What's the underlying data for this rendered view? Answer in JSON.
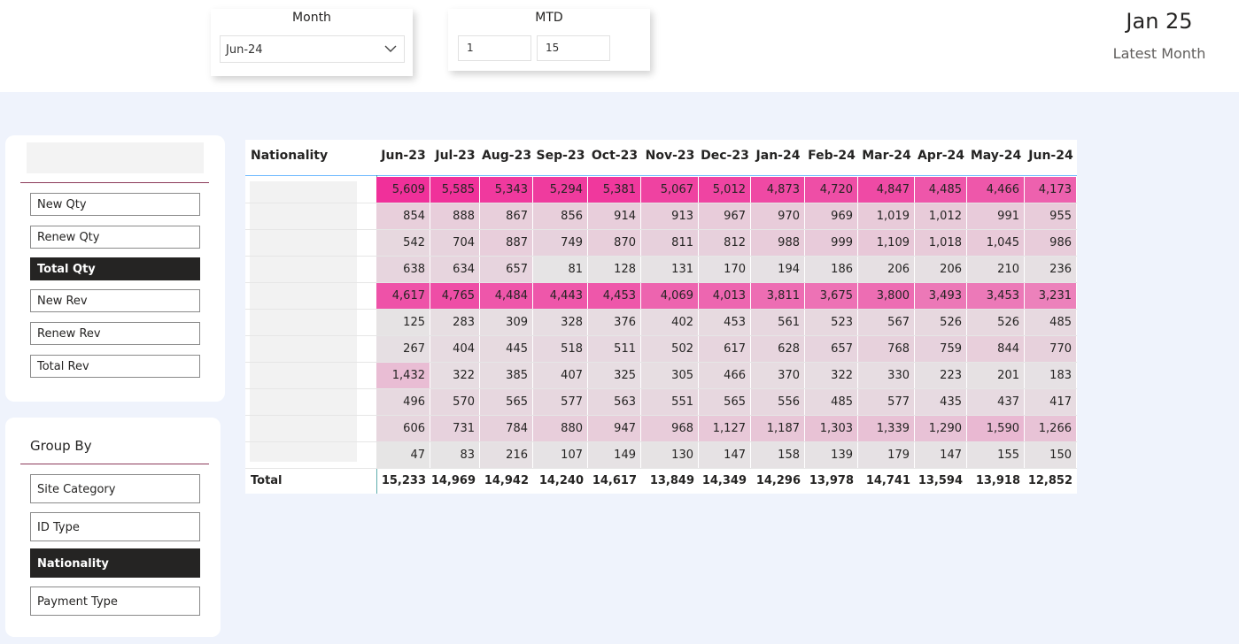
{
  "month_slicer": {
    "title": "Month",
    "selected": "Jun-24"
  },
  "mtd_slicer": {
    "title": "MTD",
    "from": "1",
    "to": "15"
  },
  "latest_month": {
    "value": "Jan 25",
    "label": "Latest Month"
  },
  "measure_buttons": [
    {
      "label": "New Qty",
      "active": false
    },
    {
      "label": "Renew Qty",
      "active": false
    },
    {
      "label": "Total Qty",
      "active": true
    },
    {
      "label": "New Rev",
      "active": false
    },
    {
      "label": "Renew Rev",
      "active": false
    },
    {
      "label": "Total Rev",
      "active": false
    }
  ],
  "group_by": {
    "title": "Group By",
    "buttons": [
      {
        "label": "Site Category",
        "active": false
      },
      {
        "label": "ID Type",
        "active": false
      },
      {
        "label": "Nationality",
        "active": true
      },
      {
        "label": "Payment Type",
        "active": false
      }
    ]
  },
  "matrix": {
    "row_header": "Nationality",
    "columns": [
      "Jun-23",
      "Jul-23",
      "Aug-23",
      "Sep-23",
      "Oct-23",
      "Nov-23",
      "Dec-23",
      "Jan-24",
      "Feb-24",
      "Mar-24",
      "Apr-24",
      "May-24",
      "Jun-24"
    ],
    "rows": [
      [
        "5,609",
        "5,585",
        "5,343",
        "5,294",
        "5,381",
        "5,067",
        "5,012",
        "4,873",
        "4,720",
        "4,847",
        "4,485",
        "4,466",
        "4,173"
      ],
      [
        "854",
        "888",
        "867",
        "856",
        "914",
        "913",
        "967",
        "970",
        "969",
        "1,019",
        "1,012",
        "991",
        "955"
      ],
      [
        "542",
        "704",
        "887",
        "749",
        "870",
        "811",
        "812",
        "988",
        "999",
        "1,109",
        "1,018",
        "1,045",
        "986"
      ],
      [
        "638",
        "634",
        "657",
        "81",
        "128",
        "131",
        "170",
        "194",
        "186",
        "206",
        "206",
        "210",
        "236"
      ],
      [
        "4,617",
        "4,765",
        "4,484",
        "4,443",
        "4,453",
        "4,069",
        "4,013",
        "3,811",
        "3,675",
        "3,800",
        "3,493",
        "3,453",
        "3,231"
      ],
      [
        "125",
        "283",
        "309",
        "328",
        "376",
        "402",
        "453",
        "561",
        "523",
        "567",
        "526",
        "526",
        "485"
      ],
      [
        "267",
        "404",
        "445",
        "518",
        "511",
        "502",
        "617",
        "628",
        "657",
        "768",
        "759",
        "844",
        "770"
      ],
      [
        "1,432",
        "322",
        "385",
        "407",
        "325",
        "305",
        "466",
        "370",
        "322",
        "330",
        "223",
        "201",
        "183"
      ],
      [
        "496",
        "570",
        "565",
        "577",
        "563",
        "551",
        "565",
        "556",
        "485",
        "577",
        "435",
        "437",
        "417"
      ],
      [
        "606",
        "731",
        "784",
        "880",
        "947",
        "968",
        "1,127",
        "1,187",
        "1,303",
        "1,339",
        "1,290",
        "1,590",
        "1,266"
      ],
      [
        "47",
        "83",
        "216",
        "107",
        "149",
        "130",
        "147",
        "158",
        "139",
        "179",
        "147",
        "155",
        "150"
      ]
    ],
    "total_label": "Total",
    "totals": [
      "15,233",
      "14,969",
      "14,942",
      "14,240",
      "14,617",
      "13,849",
      "14,349",
      "14,296",
      "13,978",
      "14,741",
      "13,594",
      "13,918",
      "12,852"
    ],
    "color_high": "#f0309a",
    "color_mid": "#e8c8d8",
    "color_low": "#e6e6e6"
  }
}
